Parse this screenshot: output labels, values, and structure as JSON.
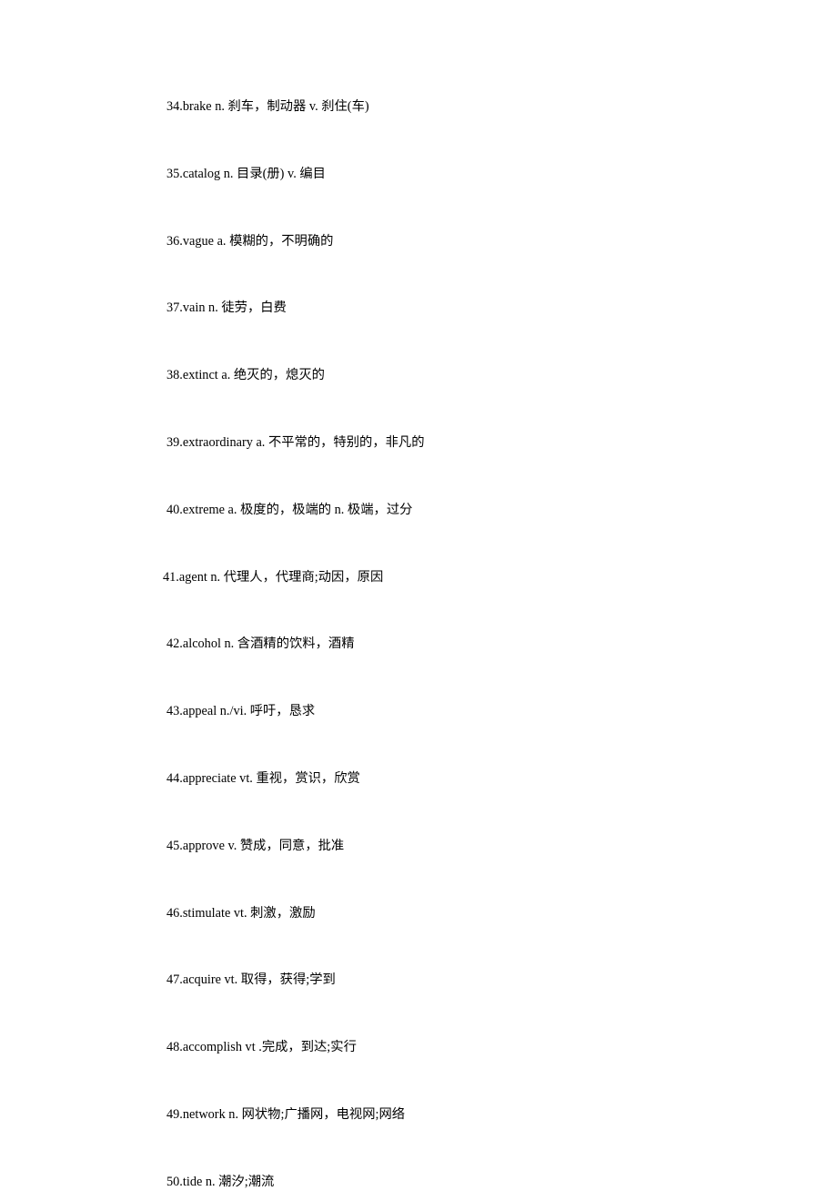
{
  "entries": [
    {
      "num": "34",
      "word": "brake",
      "pos": "n.",
      "def": " 刹车，制动器  v. 刹住(车)"
    },
    {
      "num": "35",
      "word": "catalog",
      "pos": "n.",
      "def": " 目录(册) v. 编目"
    },
    {
      "num": "36",
      "word": "vague",
      "pos": "a.",
      "def": " 模糊的，不明确的"
    },
    {
      "num": "37",
      "word": "vain",
      "pos": "n.",
      "def": " 徒劳，白费"
    },
    {
      "num": "38",
      "word": "extinct",
      "pos": "a.",
      "def": " 绝灭的，熄灭的"
    },
    {
      "num": "39",
      "word": "extraordinary",
      "pos": "a.",
      "def": " 不平常的，特别的，非凡的"
    },
    {
      "num": "40",
      "word": "extreme",
      "pos": "a.",
      "def": " 极度的，极端的  n. 极端，过分"
    },
    {
      "num": "41",
      "word": "agent",
      "pos": "n.",
      "def": " 代理人，代理商;动因，原因"
    },
    {
      "num": "42",
      "word": "alcohol",
      "pos": "n.",
      "def": " 含酒精的饮料，酒精"
    },
    {
      "num": "43",
      "word": "appeal",
      "pos": "n./vi.",
      "def": " 呼吁，恳求"
    },
    {
      "num": "44",
      "word": "appreciate",
      "pos": "vt.",
      "def": " 重视，赏识，欣赏"
    },
    {
      "num": "45",
      "word": "approve",
      "pos": "v.",
      "def": " 赞成，同意，批准"
    },
    {
      "num": "46",
      "word": "stimulate",
      "pos": "vt.",
      "def": " 刺激，激励"
    },
    {
      "num": "47",
      "word": "acquire",
      "pos": "vt.",
      "def": " 取得，获得;学到"
    },
    {
      "num": "48",
      "word": "accomplish",
      "pos": "vt .",
      "def": "完成，到达;实行"
    },
    {
      "num": "49",
      "word": "network",
      "pos": "n.",
      "def": " 网状物;广播网，电视网;网络"
    },
    {
      "num": "50",
      "word": "tide",
      "pos": "n.",
      "def": " 潮汐;潮流"
    }
  ],
  "text_color": "#000000",
  "background_color": "#ffffff",
  "font_size": 14.3,
  "line_spacing": 54.5
}
